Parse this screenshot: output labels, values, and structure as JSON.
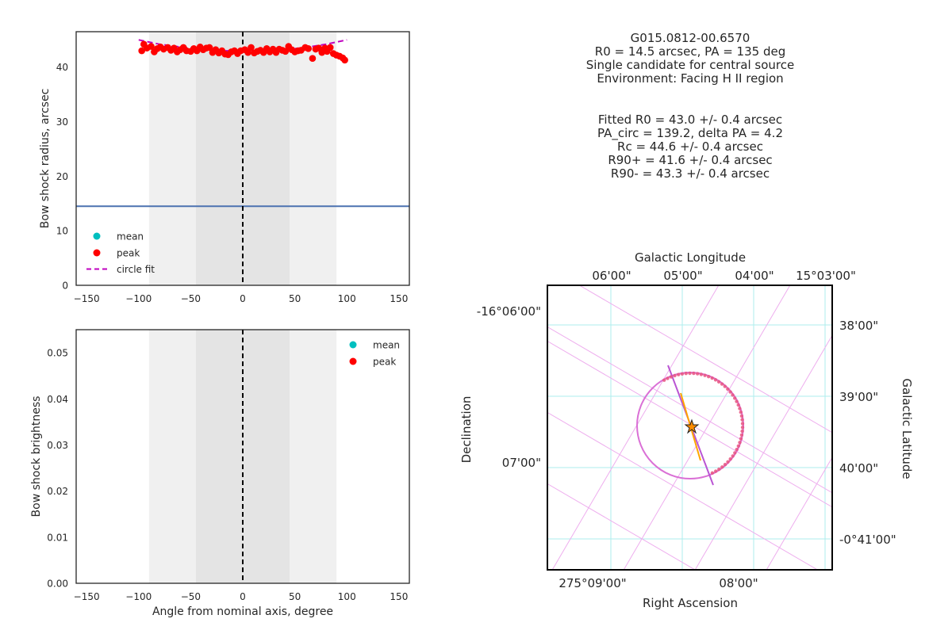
{
  "chart_data": [
    {
      "type": "scatter",
      "panel": "radius",
      "xlabel": "",
      "ylabel": "Bow shock radius, arcsec",
      "xlim": [
        -160,
        160
      ],
      "ylim": [
        0,
        46.5
      ],
      "xticks": [
        -150,
        -100,
        -50,
        0,
        50,
        100,
        150
      ],
      "yticks": [
        0,
        10,
        20,
        30,
        40
      ],
      "grid": false,
      "legend": "lower-left",
      "shaded_bands": [
        {
          "x": [
            -90,
            90
          ],
          "color": "#f0f0f0"
        },
        {
          "x": [
            -45,
            45
          ],
          "color": "#e4e4e4"
        }
      ],
      "vline_x": 0,
      "hline_y": 14.5,
      "series": [
        {
          "name": "mean",
          "color": "#00bfbf",
          "x": [],
          "y": []
        },
        {
          "name": "peak",
          "color": "#ff0000",
          "x": [
            -97,
            -95,
            -92,
            -88,
            -85,
            -82,
            -79,
            -76,
            -72,
            -69,
            -66,
            -63,
            -60,
            -57,
            -54,
            -50,
            -47,
            -44,
            -41,
            -38,
            -35,
            -32,
            -29,
            -26,
            -23,
            -20,
            -17,
            -14,
            -11,
            -8,
            -5,
            -2,
            2,
            5,
            8,
            11,
            14,
            17,
            20,
            23,
            26,
            29,
            32,
            35,
            38,
            41,
            44,
            47,
            50,
            53,
            56,
            60,
            63,
            67,
            70,
            73,
            76,
            79,
            81,
            84,
            87,
            90,
            93,
            96,
            98
          ],
          "y": [
            43.0,
            44.2,
            43.5,
            43.8,
            42.8,
            43.4,
            43.7,
            43.3,
            43.6,
            43.1,
            43.5,
            42.8,
            43.2,
            43.6,
            43.0,
            42.9,
            43.4,
            43.0,
            43.7,
            43.2,
            43.5,
            43.6,
            42.7,
            43.2,
            42.6,
            43.0,
            42.4,
            42.3,
            42.8,
            43.0,
            42.5,
            43.0,
            43.2,
            42.7,
            43.6,
            42.6,
            42.9,
            43.1,
            42.7,
            43.4,
            42.8,
            43.3,
            42.7,
            43.3,
            43.1,
            42.9,
            43.8,
            43.2,
            42.8,
            43.0,
            43.1,
            43.6,
            43.4,
            41.6,
            43.3,
            43.5,
            42.7,
            43.5,
            42.9,
            43.6,
            42.5,
            42.2,
            42.0,
            41.7,
            41.3
          ]
        },
        {
          "name": "circle fit",
          "color": "#bf00bf",
          "style": "dashed",
          "x": [
            -100,
            -80,
            -60,
            -40,
            -20,
            0,
            20,
            40,
            60,
            80,
            100
          ],
          "y": [
            45.0,
            44.2,
            43.7,
            43.3,
            43.0,
            43.0,
            43.0,
            43.2,
            43.6,
            44.2,
            45.0
          ]
        }
      ]
    },
    {
      "type": "scatter",
      "panel": "brightness",
      "xlabel": "Angle from nominal axis, degree",
      "ylabel": "Bow shock brightness",
      "xlim": [
        -160,
        160
      ],
      "ylim": [
        0,
        0.055
      ],
      "xticks": [
        -150,
        -100,
        -50,
        0,
        50,
        100,
        150
      ],
      "yticks": [
        0.0,
        0.01,
        0.02,
        0.03,
        0.04,
        0.05
      ],
      "ytick_labels": [
        "0.00",
        "0.01",
        "0.02",
        "0.03",
        "0.04",
        "0.05"
      ],
      "grid": false,
      "legend": "top-right",
      "shaded_bands": [
        {
          "x": [
            -90,
            90
          ],
          "color": "#f0f0f0"
        },
        {
          "x": [
            -45,
            45
          ],
          "color": "#e4e4e4"
        }
      ],
      "vline_x": 0,
      "series": [
        {
          "name": "mean",
          "color": "#00bfbf",
          "x": [],
          "y": []
        },
        {
          "name": "peak",
          "color": "#ff0000",
          "x": [],
          "y": []
        }
      ]
    },
    {
      "type": "scatter",
      "panel": "sky-image",
      "xlabel": "Right Ascension",
      "ylabel": "Declination",
      "top_label": "Galactic Longitude",
      "right_label": "Galactic Latitude",
      "bottom_ticks": [
        "275°09'00\"",
        "08'00\""
      ],
      "left_ticks": [
        "-16°06'00\"",
        "07'00\""
      ],
      "top_ticks": [
        "06'00\"",
        "05'00\"",
        "04'00\"",
        "15°03'00\""
      ],
      "right_ticks": [
        "38'00\"",
        "39'00\"",
        "40'00\"",
        "-0°41'00\""
      ],
      "fit_circle_radius_arcsec": 43.0,
      "pa_deg": 135,
      "pa_circ_deg": 139.2
    }
  ],
  "info": {
    "header": [
      "G015.0812-00.6570",
      "R0 = 14.5 arcsec, PA = 135 deg",
      "Single candidate for central source",
      "Environment: Facing H II region"
    ],
    "fit": [
      "Fitted R0 = 43.0 +/- 0.4 arcsec",
      "PA_circ = 139.2, delta PA = 4.2",
      "Rc = 44.6 +/- 0.4 arcsec",
      "R90+ = 41.6 +/- 0.4 arcsec",
      "R90- = 43.3 +/- 0.4 arcsec"
    ]
  },
  "colors": {
    "hline": "#4c72b0",
    "vline": "#000000",
    "fit_circle": "#da70d6",
    "axis_line": "#ba55d3",
    "pa_line": "#ffa500",
    "points": "#e75480",
    "star": "#ff8c00",
    "ra_dec_grid": "#aeeeee",
    "galactic_grid": "#eeaeee"
  }
}
